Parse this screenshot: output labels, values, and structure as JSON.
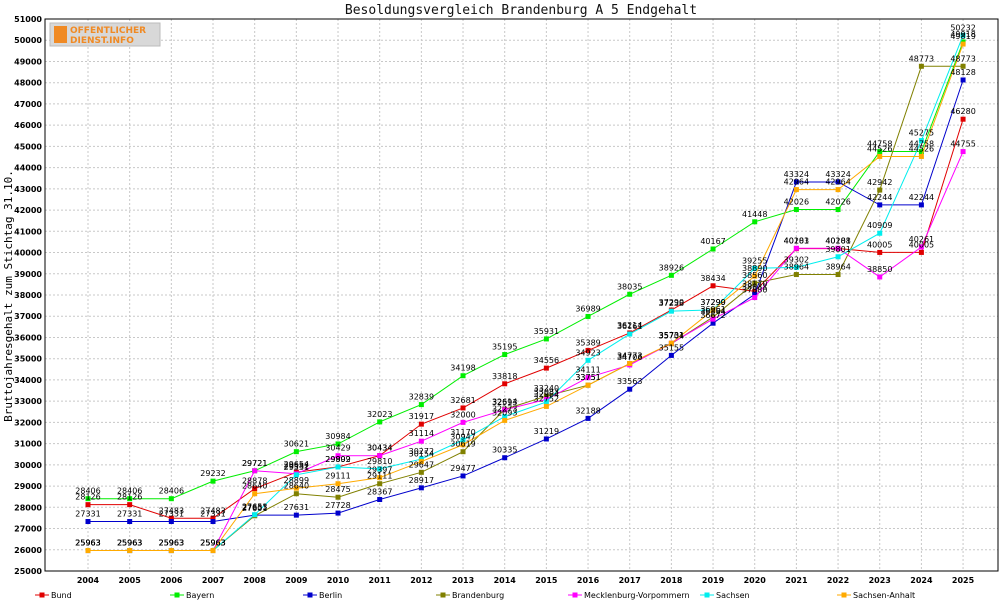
{
  "chart_data": {
    "type": "line",
    "title": "Besoldungsvergleich Brandenburg A 5 Endgehalt",
    "ylabel": "Bruttojahresgehalt zum Stichtag 31.10.",
    "xlabel": "",
    "ylim": [
      25000,
      51000
    ],
    "ytick_step": 1000,
    "grid": true,
    "legend_position": "bottom",
    "categories": [
      "2004",
      "2005",
      "2006",
      "2007",
      "2008",
      "2009",
      "2010",
      "2011",
      "2012",
      "2013",
      "2014",
      "2015",
      "2016",
      "2017",
      "2018",
      "2019",
      "2020",
      "2021",
      "2022",
      "2023",
      "2024",
      "2025"
    ],
    "series": [
      {
        "name": "Bund",
        "color": "#e00000",
        "values": [
          28126,
          28126,
          27483,
          27483,
          28878,
          29654,
          29902,
          30434,
          31917,
          32681,
          33818,
          34556,
          35389,
          36214,
          37290,
          38434,
          38170,
          40183,
          40188,
          40005,
          40005,
          46280
        ]
      },
      {
        "name": "Bayern",
        "color": "#00ee00",
        "values": [
          28406,
          28406,
          28406,
          29232,
          29721,
          30621,
          30984,
          32023,
          32839,
          34198,
          35195,
          35931,
          36989,
          38035,
          38926,
          40167,
          41448,
          42026,
          42026,
          44758,
          44758,
          49918
        ]
      },
      {
        "name": "Berlin",
        "color": "#0000cc",
        "values": [
          27331,
          27331,
          27331,
          27331,
          27631,
          27631,
          27728,
          28367,
          28917,
          29477,
          30335,
          31219,
          32188,
          33563,
          35155,
          36672,
          38031,
          43324,
          43324,
          42244,
          42244,
          48128
        ]
      },
      {
        "name": "Brandenburg",
        "color": "#808000",
        "values": [
          25963,
          25963,
          25963,
          25963,
          27601,
          28640,
          28475,
          29111,
          29647,
          30619,
          32614,
          33240,
          33751,
          34773,
          35704,
          36961,
          38560,
          38964,
          38964,
          42942,
          48773,
          48773
        ]
      },
      {
        "name": "Mecklenburg-Vorpommern",
        "color": "#ff00ff",
        "values": [
          25963,
          25963,
          25963,
          25963,
          29721,
          29582,
          30429,
          30434,
          31114,
          32000,
          32593,
          33083,
          34111,
          34706,
          35731,
          36864,
          37880,
          40201,
          40201,
          38850,
          40261,
          44755
        ]
      },
      {
        "name": "Sachsen",
        "color": "#00eeee",
        "values": [
          25963,
          25963,
          25963,
          25963,
          27653,
          29531,
          29899,
          29810,
          30272,
          31170,
          32273,
          32964,
          34923,
          36161,
          37238,
          37299,
          39255,
          39302,
          39801,
          40909,
          45275,
          50232
        ]
      },
      {
        "name": "Sachsen-Anhalt",
        "color": "#ffaa00",
        "values": [
          25963,
          25963,
          25963,
          25963,
          28640,
          28899,
          29111,
          29397,
          30154,
          30947,
          32093,
          32752,
          33751,
          34773,
          35731,
          37290,
          38890,
          42964,
          42964,
          44526,
          44526,
          49819
        ]
      }
    ]
  },
  "logo": {
    "line1": "OFFENTLICHER",
    "line2": "DIENST.INFO"
  }
}
